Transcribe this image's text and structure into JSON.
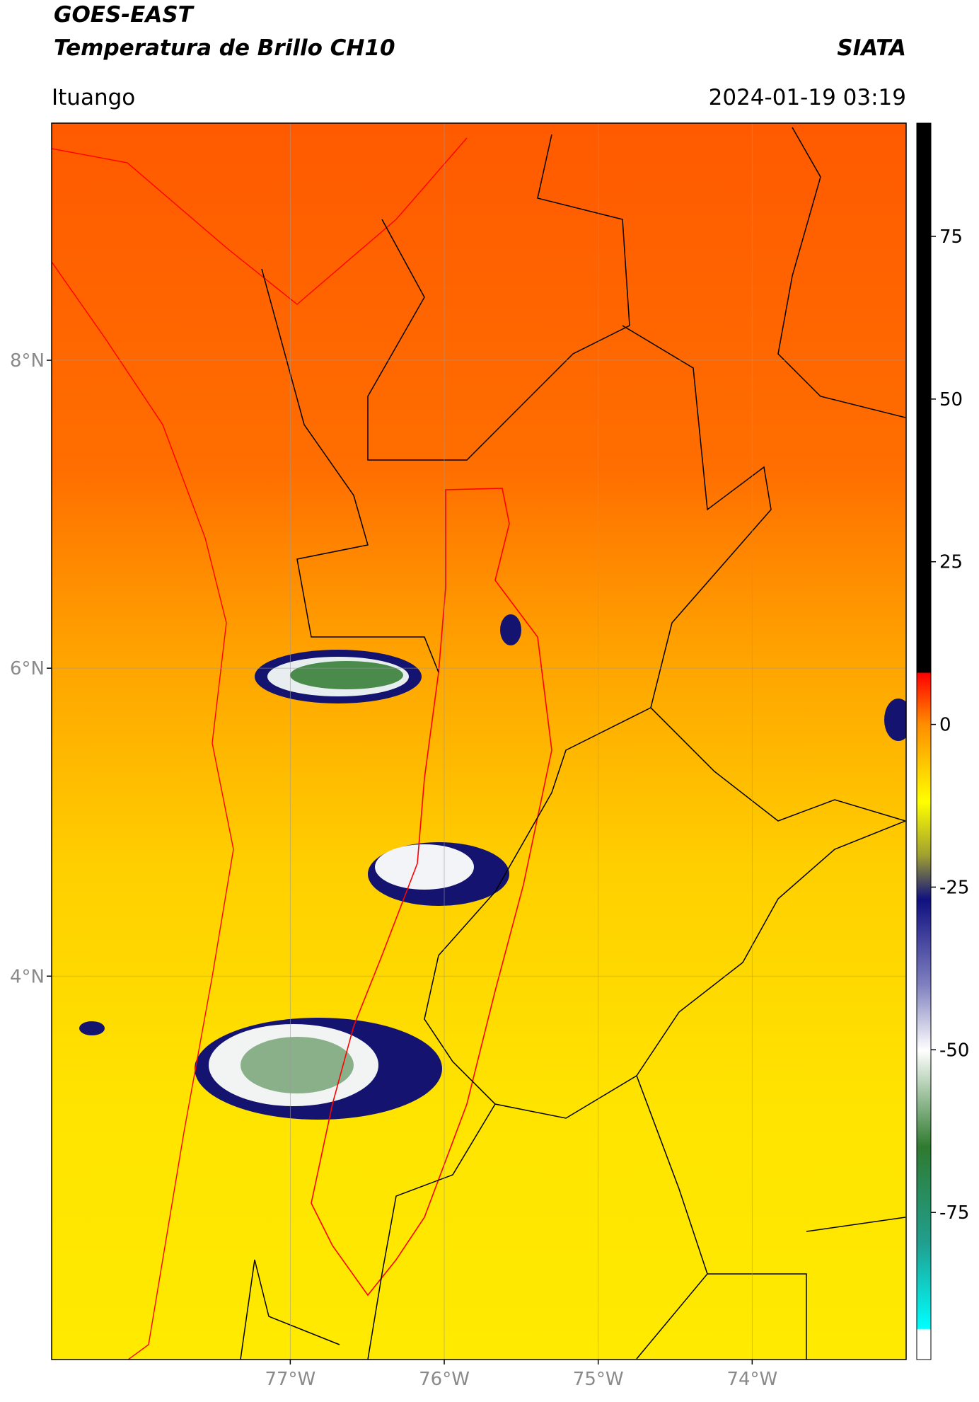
{
  "header": {
    "title": "GOES-EAST",
    "subtitle": "Temperatura de Brillo CH10",
    "credit": "SIATA",
    "region": "Ituango",
    "timestamp": "2024-01-19 03:19"
  },
  "map": {
    "latlim": [
      1.51,
      9.54
    ],
    "lonlim": [
      -78.55,
      -73.0
    ],
    "lat_ticks": [
      {
        "value": 8,
        "label": "8°N"
      },
      {
        "value": 6,
        "label": "6°N"
      },
      {
        "value": 4,
        "label": "4°N"
      }
    ],
    "lon_ticks": [
      {
        "value": -77,
        "label": "77°W"
      },
      {
        "value": -76,
        "label": "76°W"
      },
      {
        "value": -75,
        "label": "75°W"
      },
      {
        "value": -74,
        "label": "74°W"
      }
    ]
  },
  "colorbar": {
    "lim": [
      -97.6,
      92.4
    ],
    "ticks": [
      -75,
      -50,
      -25,
      0,
      25,
      50,
      75
    ]
  }
}
